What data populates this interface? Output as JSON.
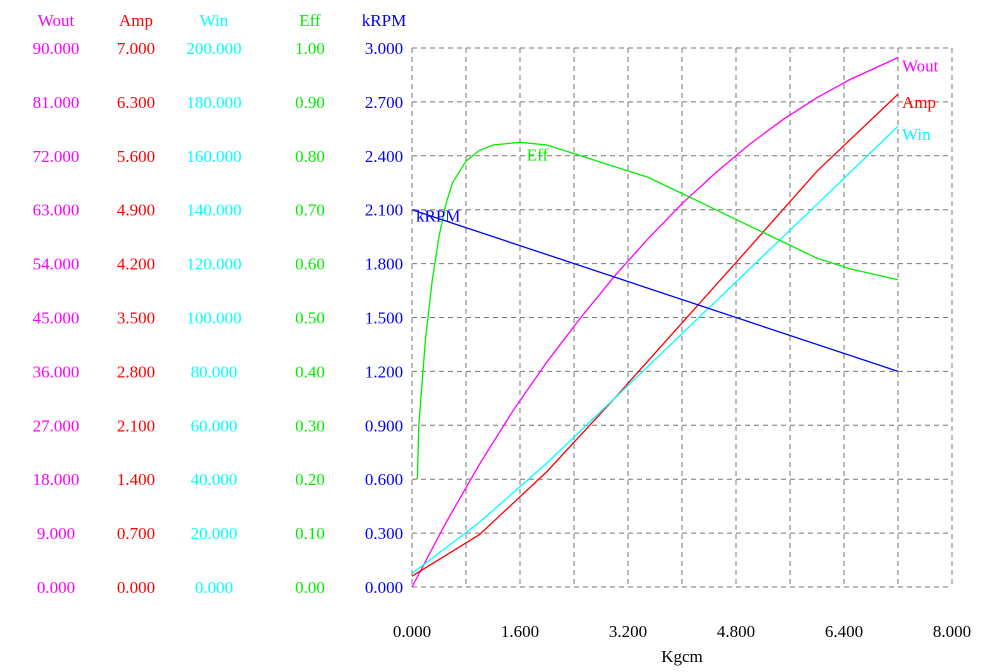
{
  "chart_data": {
    "type": "line",
    "title": "",
    "xlabel": "Kgcm",
    "x_ticks": [
      "0.000",
      "1.600",
      "3.200",
      "4.800",
      "6.400",
      "8.000"
    ],
    "xlim": [
      0,
      8
    ],
    "grid": true,
    "axes": [
      {
        "key": "wout",
        "name": "Wout",
        "color": "#ff00ff",
        "range": [
          0,
          90
        ],
        "ticks": [
          "0.000",
          "9.000",
          "18.000",
          "27.000",
          "36.000",
          "45.000",
          "54.000",
          "63.000",
          "72.000",
          "81.000",
          "90.000"
        ]
      },
      {
        "key": "amp",
        "name": "Amp",
        "color": "#ff0000",
        "range": [
          0,
          7
        ],
        "ticks": [
          "0.000",
          "0.700",
          "1.400",
          "2.100",
          "2.800",
          "3.500",
          "4.200",
          "4.900",
          "5.600",
          "6.300",
          "7.000"
        ]
      },
      {
        "key": "win",
        "name": "Win",
        "color": "#00ffff",
        "range": [
          0,
          200
        ],
        "ticks": [
          "0.000",
          "20.000",
          "40.000",
          "60.000",
          "80.000",
          "100.000",
          "120.000",
          "140.000",
          "160.000",
          "180.000",
          "200.000"
        ]
      },
      {
        "key": "eff",
        "name": "Eff",
        "color": "#00ee00",
        "range": [
          0,
          1
        ],
        "ticks": [
          "0.00",
          "0.10",
          "0.20",
          "0.30",
          "0.40",
          "0.50",
          "0.60",
          "0.70",
          "0.80",
          "0.90",
          "1.00"
        ]
      },
      {
        "key": "krpm",
        "name": "kRPM",
        "color": "#0000ff",
        "range": [
          0,
          3
        ],
        "ticks": [
          "0.000",
          "0.300",
          "0.600",
          "0.900",
          "1.200",
          "1.500",
          "1.800",
          "2.100",
          "2.400",
          "2.700",
          "3.000"
        ]
      }
    ],
    "series": [
      {
        "name": "Wout",
        "axis": "wout",
        "color": "#ff00ff",
        "x": [
          0,
          0.5,
          1.0,
          1.5,
          2.0,
          2.5,
          3.0,
          3.5,
          4.0,
          4.5,
          5.0,
          5.5,
          6.0,
          6.5,
          7.2
        ],
        "y": [
          0,
          10.7,
          20.5,
          29.5,
          37.6,
          45.0,
          51.9,
          58.2,
          64.0,
          69.2,
          73.9,
          78.1,
          81.7,
          84.8,
          88.4
        ]
      },
      {
        "name": "Amp",
        "axis": "amp",
        "color": "#ff0000",
        "x": [
          0,
          1.0,
          2.0,
          3.0,
          4.0,
          5.0,
          6.0,
          7.2
        ],
        "y": [
          0.14,
          0.68,
          1.5,
          2.45,
          3.43,
          4.41,
          5.4,
          6.4
        ]
      },
      {
        "name": "Win",
        "axis": "win",
        "color": "#00ffff",
        "x": [
          0,
          1.0,
          2.0,
          3.0,
          4.0,
          5.0,
          6.0,
          7.2
        ],
        "y": [
          5,
          24,
          46,
          70,
          94,
          118,
          142,
          171
        ]
      },
      {
        "name": "Eff",
        "axis": "eff",
        "color": "#00ee00",
        "x": [
          0.08,
          0.1,
          0.2,
          0.3,
          0.4,
          0.5,
          0.6,
          0.8,
          1.0,
          1.2,
          1.6,
          2.0,
          2.5,
          3.0,
          3.5,
          4.0,
          4.5,
          5.0,
          5.5,
          6.0,
          6.5,
          7.2
        ],
        "y": [
          0.2,
          0.3,
          0.46,
          0.57,
          0.65,
          0.71,
          0.75,
          0.79,
          0.81,
          0.82,
          0.825,
          0.82,
          0.8,
          0.78,
          0.76,
          0.73,
          0.7,
          0.67,
          0.64,
          0.61,
          0.59,
          0.57
        ]
      },
      {
        "name": "kRPM",
        "axis": "krpm",
        "color": "#0000ff",
        "x": [
          0,
          7.2
        ],
        "y": [
          2.1,
          1.2
        ]
      }
    ]
  }
}
